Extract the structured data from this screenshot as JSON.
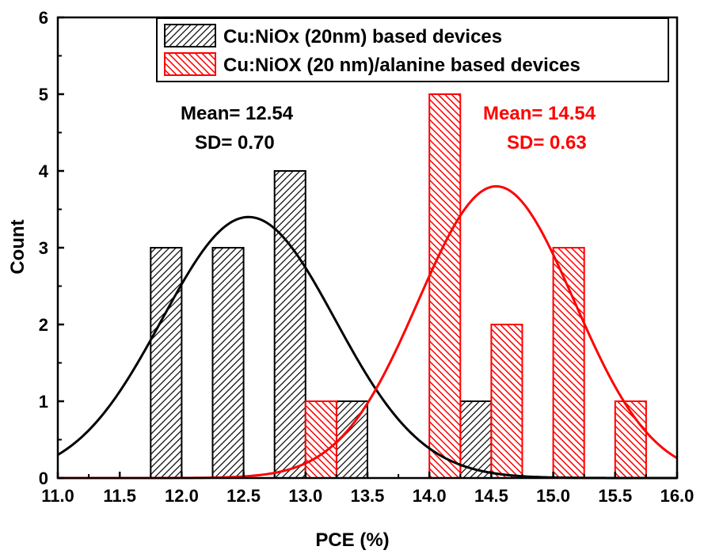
{
  "chart_data": {
    "type": "bar",
    "xlabel": "PCE (%)",
    "ylabel": "Count",
    "xlim": [
      11.0,
      16.0
    ],
    "ylim": [
      0,
      6
    ],
    "xticks": [
      "11.0",
      "11.5",
      "12.0",
      "12.5",
      "13.0",
      "13.5",
      "14.0",
      "14.5",
      "15.0",
      "15.5",
      "16.0"
    ],
    "yticks": [
      "0",
      "1",
      "2",
      "3",
      "4",
      "5",
      "6"
    ],
    "bin_width": 0.25,
    "legend_position": "top-right",
    "series": [
      {
        "name": "Cu:NiOx (20nm) based devices",
        "color": "#000000",
        "hatch": "dense-diagonal",
        "bins": [
          {
            "x": 11.875,
            "count": 3
          },
          {
            "x": 12.375,
            "count": 3
          },
          {
            "x": 12.875,
            "count": 4
          },
          {
            "x": 13.375,
            "count": 1
          },
          {
            "x": 14.375,
            "count": 1
          }
        ],
        "fit": {
          "mean": 12.54,
          "sd": 0.7,
          "peak": 3.4
        },
        "stats": {
          "mean_label": "Mean= 12.54",
          "sd_label": "SD= 0.70"
        }
      },
      {
        "name": "Cu:NiOX (20 nm)/alanine based devices",
        "color": "#ff0000",
        "hatch": "diagonal",
        "bins": [
          {
            "x": 13.125,
            "count": 1
          },
          {
            "x": 14.125,
            "count": 5
          },
          {
            "x": 14.625,
            "count": 2
          },
          {
            "x": 15.125,
            "count": 3
          },
          {
            "x": 15.625,
            "count": 1
          }
        ],
        "fit": {
          "mean": 14.54,
          "sd": 0.63,
          "peak": 3.8
        },
        "stats": {
          "mean_label": "Mean= 14.54",
          "sd_label": "SD= 0.63"
        }
      }
    ]
  }
}
